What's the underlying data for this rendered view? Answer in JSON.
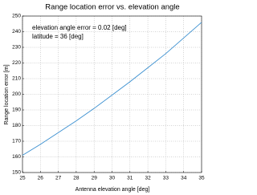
{
  "chart_data": {
    "type": "line",
    "title": "Range location error vs. elevation angle",
    "x_label": "Antenna elevation angle [deg]",
    "y_label": "Range location error [m]",
    "annotations": [
      "elevation angle error = 0.02 [deg]",
      "latitude = 36 [deg]"
    ],
    "x": [
      25,
      26,
      27,
      28,
      29,
      30,
      31,
      32,
      33,
      34,
      35
    ],
    "values": [
      161,
      168,
      175.5,
      183,
      191,
      199.5,
      208,
      217,
      226,
      236,
      246
    ],
    "color": "#3a8fd0",
    "xlim": [
      25,
      35
    ],
    "xticks": [
      25,
      26,
      27,
      28,
      29,
      30,
      31,
      32,
      33,
      34,
      35
    ],
    "ylim": [
      150,
      250
    ],
    "yticks": [
      150,
      160,
      170,
      180,
      190,
      200,
      210,
      220,
      230,
      240,
      250
    ],
    "grid": true
  }
}
